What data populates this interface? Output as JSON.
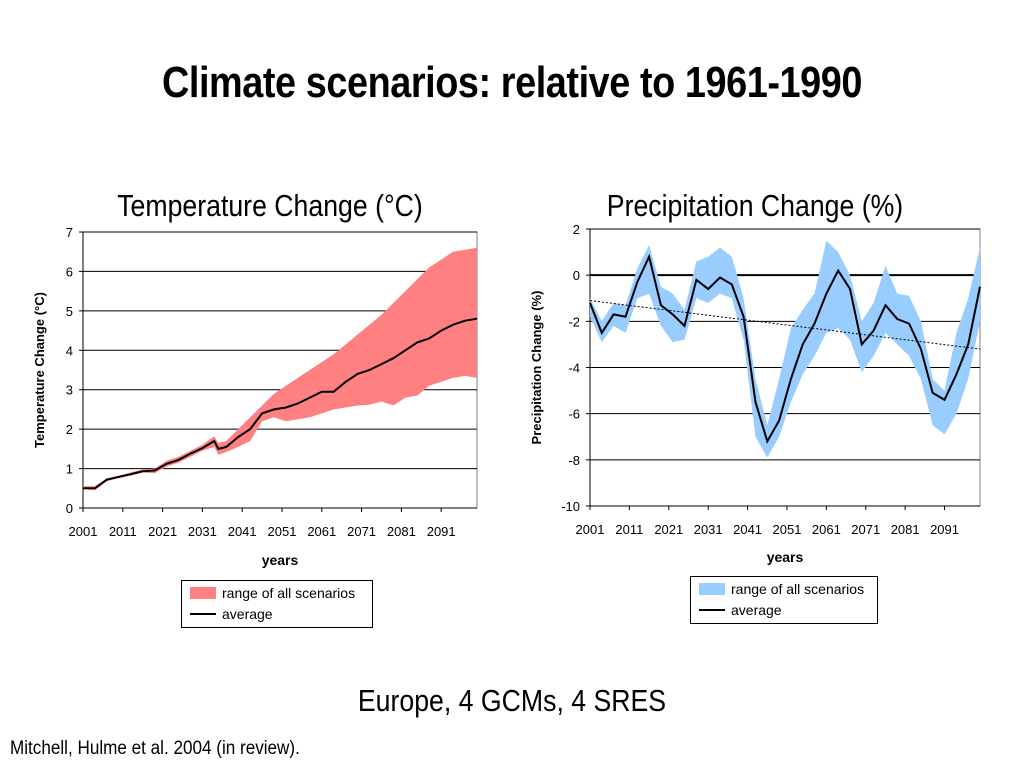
{
  "slide": {
    "title": "Climate scenarios: relative to 1961-1990",
    "caption": "Europe, 4 GCMs, 4 SRES",
    "citation": "Mitchell, Hulme et al. 2004 (in review)."
  },
  "chart_data": [
    {
      "type": "area",
      "title": "Temperature Change (°C)",
      "xlabel": "years",
      "ylabel": "Temperature Change (°C)",
      "xlim": [
        2001,
        2100
      ],
      "ylim": [
        0,
        7
      ],
      "yticks": [
        0,
        1,
        2,
        3,
        4,
        5,
        6,
        7
      ],
      "xtick_labels": [
        "2001",
        "2011",
        "2021",
        "2031",
        "2041",
        "2051",
        "2061",
        "2071",
        "2081",
        "2091"
      ],
      "grid": true,
      "legend_position": "bottom",
      "colors": {
        "range": "#ff8080",
        "average": "#000000"
      },
      "legend": [
        "range of all scenarios",
        "average"
      ],
      "x": [
        2001,
        2004,
        2007,
        2010,
        2013,
        2016,
        2019,
        2022,
        2025,
        2028,
        2031,
        2034,
        2035,
        2037,
        2040,
        2043,
        2046,
        2049,
        2052,
        2055,
        2058,
        2061,
        2064,
        2067,
        2070,
        2073,
        2076,
        2079,
        2082,
        2085,
        2088,
        2091,
        2094,
        2097,
        2100
      ],
      "series": [
        {
          "name": "range of all scenarios",
          "role": "upper",
          "values": [
            0.55,
            0.55,
            0.75,
            0.82,
            0.9,
            0.98,
            1.0,
            1.2,
            1.3,
            1.45,
            1.6,
            1.82,
            1.65,
            1.7,
            2.0,
            2.3,
            2.6,
            2.9,
            3.1,
            3.3,
            3.5,
            3.7,
            3.9,
            4.15,
            4.4,
            4.65,
            4.9,
            5.2,
            5.5,
            5.8,
            6.1,
            6.3,
            6.5,
            6.55,
            6.6
          ]
        },
        {
          "name": "range of all scenarios",
          "role": "lower",
          "values": [
            0.48,
            0.45,
            0.68,
            0.76,
            0.82,
            0.9,
            0.88,
            1.05,
            1.15,
            1.3,
            1.45,
            1.55,
            1.35,
            1.42,
            1.55,
            1.7,
            2.2,
            2.3,
            2.2,
            2.25,
            2.3,
            2.4,
            2.5,
            2.55,
            2.6,
            2.62,
            2.7,
            2.6,
            2.8,
            2.85,
            3.1,
            3.2,
            3.3,
            3.35,
            3.3
          ]
        },
        {
          "name": "average",
          "values": [
            0.5,
            0.5,
            0.72,
            0.79,
            0.86,
            0.93,
            0.95,
            1.12,
            1.22,
            1.38,
            1.52,
            1.7,
            1.5,
            1.55,
            1.8,
            2.0,
            2.4,
            2.5,
            2.55,
            2.65,
            2.8,
            2.95,
            2.95,
            3.2,
            3.4,
            3.5,
            3.65,
            3.8,
            4.0,
            4.2,
            4.3,
            4.5,
            4.65,
            4.75,
            4.8
          ]
        }
      ]
    },
    {
      "type": "area",
      "title": "Precipitation Change (%)",
      "xlabel": "years",
      "ylabel": "Precipitation Change (%)",
      "xlim": [
        2001,
        2100
      ],
      "ylim": [
        -10,
        2
      ],
      "yticks": [
        -10,
        -8,
        -6,
        -4,
        -2,
        0,
        2
      ],
      "xtick_labels": [
        "2001",
        "2011",
        "2021",
        "2031",
        "2041",
        "2051",
        "2061",
        "2071",
        "2081",
        "2091"
      ],
      "grid": true,
      "legend_position": "bottom",
      "colors": {
        "range": "#99ccff",
        "average": "#000000",
        "trend": "#000000"
      },
      "legend": [
        "range of all scenarios",
        "average"
      ],
      "x": [
        2001,
        2004,
        2007,
        2010,
        2013,
        2016,
        2019,
        2022,
        2025,
        2028,
        2031,
        2034,
        2037,
        2040,
        2043,
        2046,
        2049,
        2052,
        2055,
        2058,
        2061,
        2064,
        2067,
        2070,
        2073,
        2076,
        2079,
        2082,
        2085,
        2088,
        2091,
        2094,
        2097,
        2100
      ],
      "series": [
        {
          "name": "range of all scenarios",
          "role": "upper",
          "values": [
            -1.0,
            -2.0,
            -1.2,
            -1.3,
            0.3,
            1.3,
            -0.5,
            -0.8,
            -1.5,
            0.6,
            0.8,
            1.2,
            0.8,
            -1.0,
            -4.5,
            -6.5,
            -4.5,
            -2.3,
            -1.5,
            -0.8,
            1.5,
            1.0,
            0.0,
            -2.0,
            -1.2,
            0.4,
            -0.8,
            -0.9,
            -2.0,
            -4.5,
            -5.0,
            -2.5,
            -1.0,
            1.2
          ]
        },
        {
          "name": "range of all scenarios",
          "role": "lower",
          "values": [
            -1.8,
            -2.9,
            -2.2,
            -2.5,
            -1.0,
            -0.8,
            -2.2,
            -2.9,
            -2.8,
            -1.0,
            -1.2,
            -0.8,
            -1.0,
            -2.8,
            -7.0,
            -7.9,
            -7.0,
            -5.5,
            -4.3,
            -3.5,
            -2.5,
            -2.3,
            -2.8,
            -4.2,
            -3.5,
            -2.5,
            -3.0,
            -3.5,
            -4.5,
            -6.5,
            -6.9,
            -6.0,
            -4.5,
            -2.0
          ]
        },
        {
          "name": "average",
          "values": [
            -1.2,
            -2.5,
            -1.7,
            -1.8,
            -0.3,
            0.8,
            -1.3,
            -1.7,
            -2.2,
            -0.2,
            -0.6,
            -0.1,
            -0.4,
            -1.8,
            -5.5,
            -7.2,
            -6.3,
            -4.5,
            -3.0,
            -2.1,
            -0.8,
            0.2,
            -0.6,
            -3.0,
            -2.4,
            -1.3,
            -1.9,
            -2.1,
            -3.2,
            -5.1,
            -5.4,
            -4.3,
            -3.0,
            -0.5
          ]
        },
        {
          "name": "trend",
          "style": "dotted",
          "values_at_xlim": [
            -1.1,
            -3.2
          ]
        }
      ]
    }
  ]
}
